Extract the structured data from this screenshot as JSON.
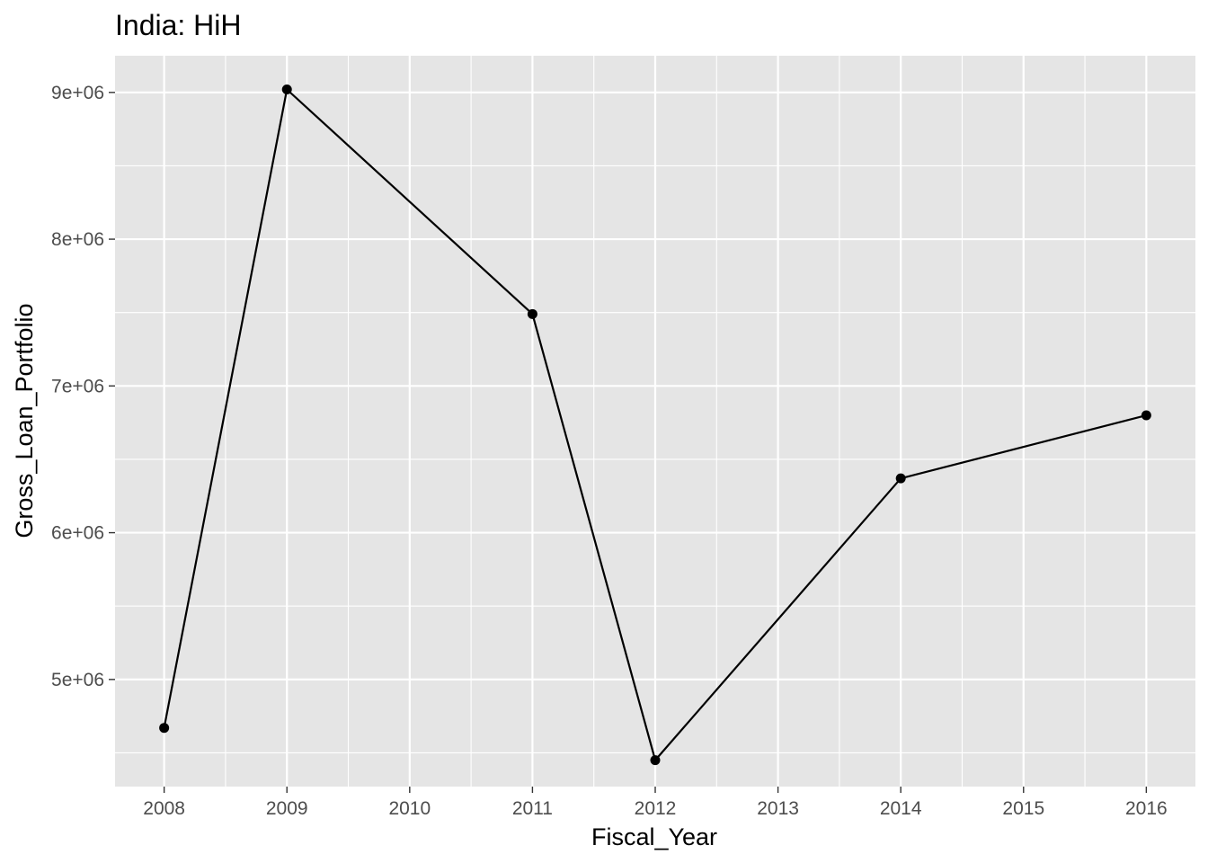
{
  "chart_data": {
    "type": "line",
    "title": "India:  HiH",
    "xlabel": "Fiscal_Year",
    "ylabel": "Gross_Loan_Portfolio",
    "x": [
      2008,
      2009,
      2011,
      2012,
      2014,
      2016
    ],
    "series": [
      {
        "values": [
          4670000,
          9020000,
          7490000,
          4450000,
          6370000,
          6800000
        ]
      }
    ],
    "xlim": [
      2007.6,
      2016.4
    ],
    "ylim": [
      4270000,
      9250000
    ],
    "x_ticks": [
      2008,
      2009,
      2010,
      2011,
      2012,
      2013,
      2014,
      2015,
      2016
    ],
    "x_tick_labels": [
      "2008",
      "2009",
      "2010",
      "2011",
      "2012",
      "2013",
      "2014",
      "2015",
      "2016"
    ],
    "y_ticks": [
      5000000,
      6000000,
      7000000,
      8000000,
      9000000
    ],
    "y_tick_labels": [
      "5e+06",
      "6e+06",
      "7e+06",
      "8e+06",
      "9e+06"
    ],
    "grid": true,
    "legend": "none",
    "colors": {
      "panel": "#e5e5e5",
      "grid": "#ffffff",
      "line": "#000000",
      "tick_text": "#4d4d4d",
      "tick_mark": "#333333"
    }
  }
}
